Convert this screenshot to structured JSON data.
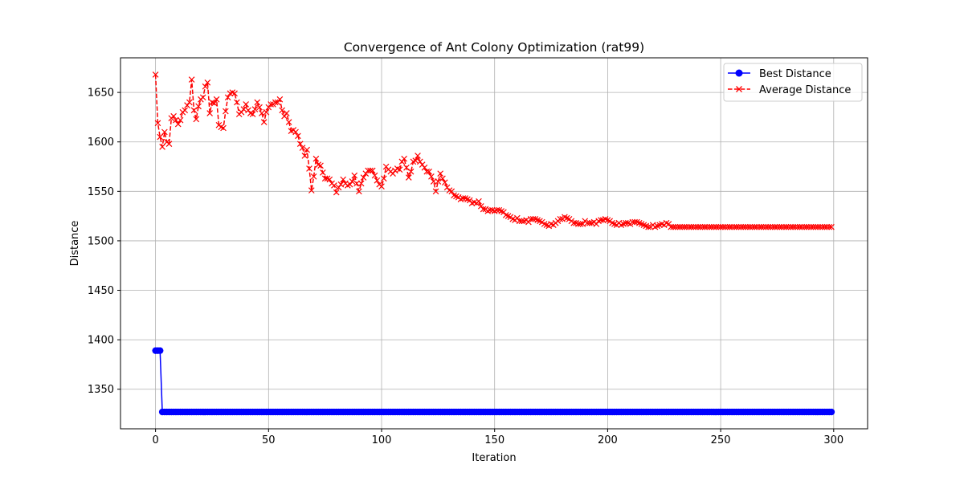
{
  "chart_data": {
    "type": "line",
    "title": "Convergence of Ant Colony Optimization (rat99)",
    "xlabel": "Iteration",
    "ylabel": "Distance",
    "xlim": [
      -15.5,
      315
    ],
    "ylim": [
      1310,
      1685
    ],
    "xticks": [
      0,
      50,
      100,
      150,
      200,
      250,
      300
    ],
    "yticks": [
      1350,
      1400,
      1450,
      1500,
      1550,
      1600,
      1650
    ],
    "grid": true,
    "legend_position": "top-right",
    "x": {
      "start": 0,
      "end": 299,
      "step": 1
    },
    "series": [
      {
        "name": "Best Distance",
        "color": "#0000ff",
        "linestyle": "solid",
        "marker": "circle",
        "segments": [
          {
            "from": 0,
            "to": 2,
            "value": 1389
          },
          {
            "from": 3,
            "to": 299,
            "value": 1327
          }
        ]
      },
      {
        "name": "Average Distance",
        "color": "#ff0000",
        "linestyle": "dashed",
        "marker": "x",
        "anchors": [
          [
            0,
            1668
          ],
          [
            1,
            1619
          ],
          [
            2,
            1605
          ],
          [
            3,
            1595
          ],
          [
            4,
            1610
          ],
          [
            5,
            1600
          ],
          [
            6,
            1598
          ],
          [
            7,
            1624
          ],
          [
            8,
            1626
          ],
          [
            9,
            1622
          ],
          [
            10,
            1618
          ],
          [
            12,
            1630
          ],
          [
            14,
            1637
          ],
          [
            15,
            1640
          ],
          [
            16,
            1663
          ],
          [
            17,
            1632
          ],
          [
            18,
            1623
          ],
          [
            19,
            1636
          ],
          [
            21,
            1645
          ],
          [
            22,
            1656
          ],
          [
            23,
            1660
          ],
          [
            24,
            1629
          ],
          [
            25,
            1640
          ],
          [
            27,
            1643
          ],
          [
            28,
            1617
          ],
          [
            30,
            1614
          ],
          [
            32,
            1645
          ],
          [
            35,
            1649
          ],
          [
            37,
            1628
          ],
          [
            40,
            1638
          ],
          [
            43,
            1628
          ],
          [
            45,
            1640
          ],
          [
            48,
            1620
          ],
          [
            50,
            1635
          ],
          [
            53,
            1640
          ],
          [
            55,
            1643
          ],
          [
            57,
            1626
          ],
          [
            58,
            1629
          ],
          [
            60,
            1611
          ],
          [
            62,
            1610
          ],
          [
            64,
            1598
          ],
          [
            66,
            1586
          ],
          [
            67,
            1592
          ],
          [
            68,
            1573
          ],
          [
            69,
            1551
          ],
          [
            71,
            1583
          ],
          [
            73,
            1576
          ],
          [
            75,
            1563
          ],
          [
            78,
            1558
          ],
          [
            80,
            1549
          ],
          [
            83,
            1562
          ],
          [
            86,
            1557
          ],
          [
            88,
            1566
          ],
          [
            90,
            1550
          ],
          [
            93,
            1568
          ],
          [
            96,
            1571
          ],
          [
            100,
            1555
          ],
          [
            102,
            1575
          ],
          [
            105,
            1568
          ],
          [
            108,
            1572
          ],
          [
            110,
            1583
          ],
          [
            112,
            1564
          ],
          [
            114,
            1580
          ],
          [
            116,
            1586
          ],
          [
            118,
            1577
          ],
          [
            120,
            1570
          ],
          [
            122,
            1565
          ],
          [
            124,
            1550
          ],
          [
            126,
            1568
          ],
          [
            128,
            1559
          ],
          [
            131,
            1550
          ],
          [
            135,
            1542
          ],
          [
            140,
            1538
          ],
          [
            143,
            1540
          ],
          [
            146,
            1532
          ],
          [
            150,
            1530
          ],
          [
            155,
            1526
          ],
          [
            160,
            1523
          ],
          [
            165,
            1519
          ],
          [
            170,
            1520
          ],
          [
            175,
            1517
          ],
          [
            180,
            1522
          ],
          [
            185,
            1518
          ],
          [
            190,
            1520
          ],
          [
            195,
            1517
          ],
          [
            200,
            1521
          ],
          [
            205,
            1518
          ],
          [
            210,
            1517
          ],
          [
            215,
            1517
          ],
          [
            220,
            1516
          ],
          [
            225,
            1516
          ],
          [
            228,
            1514
          ],
          [
            299,
            1514
          ]
        ]
      }
    ]
  }
}
